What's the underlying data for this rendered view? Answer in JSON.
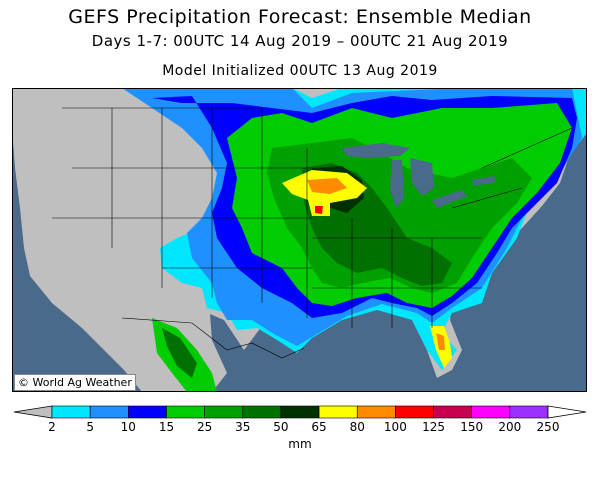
{
  "title": "GEFS Precipitation Forecast: Ensemble Median",
  "subtitle": "Days 1-7: 00UTC 14 Aug 2019 – 00UTC 21 Aug 2019",
  "init_line": "Model Initialized 00UTC 13 Aug 2019",
  "credit": "© World Ag Weather",
  "legend": {
    "units": "mm",
    "ticks": [
      "2",
      "5",
      "10",
      "15",
      "25",
      "35",
      "50",
      "65",
      "80",
      "100",
      "125",
      "150",
      "200",
      "250"
    ],
    "colors": [
      "#00e6ff",
      "#1e90ff",
      "#0000ff",
      "#00cc00",
      "#00a000",
      "#007000",
      "#003000",
      "#ffff00",
      "#ff8c00",
      "#ff0000",
      "#c80050",
      "#ff00ff",
      "#9b30ff"
    ],
    "below_color": "#bfbfbf",
    "above_color": "#ffffff"
  },
  "map": {
    "ocean_color": "#4a6a8c",
    "dry_color": "#bfbfbf",
    "lake_color": "#4a6a8c"
  }
}
